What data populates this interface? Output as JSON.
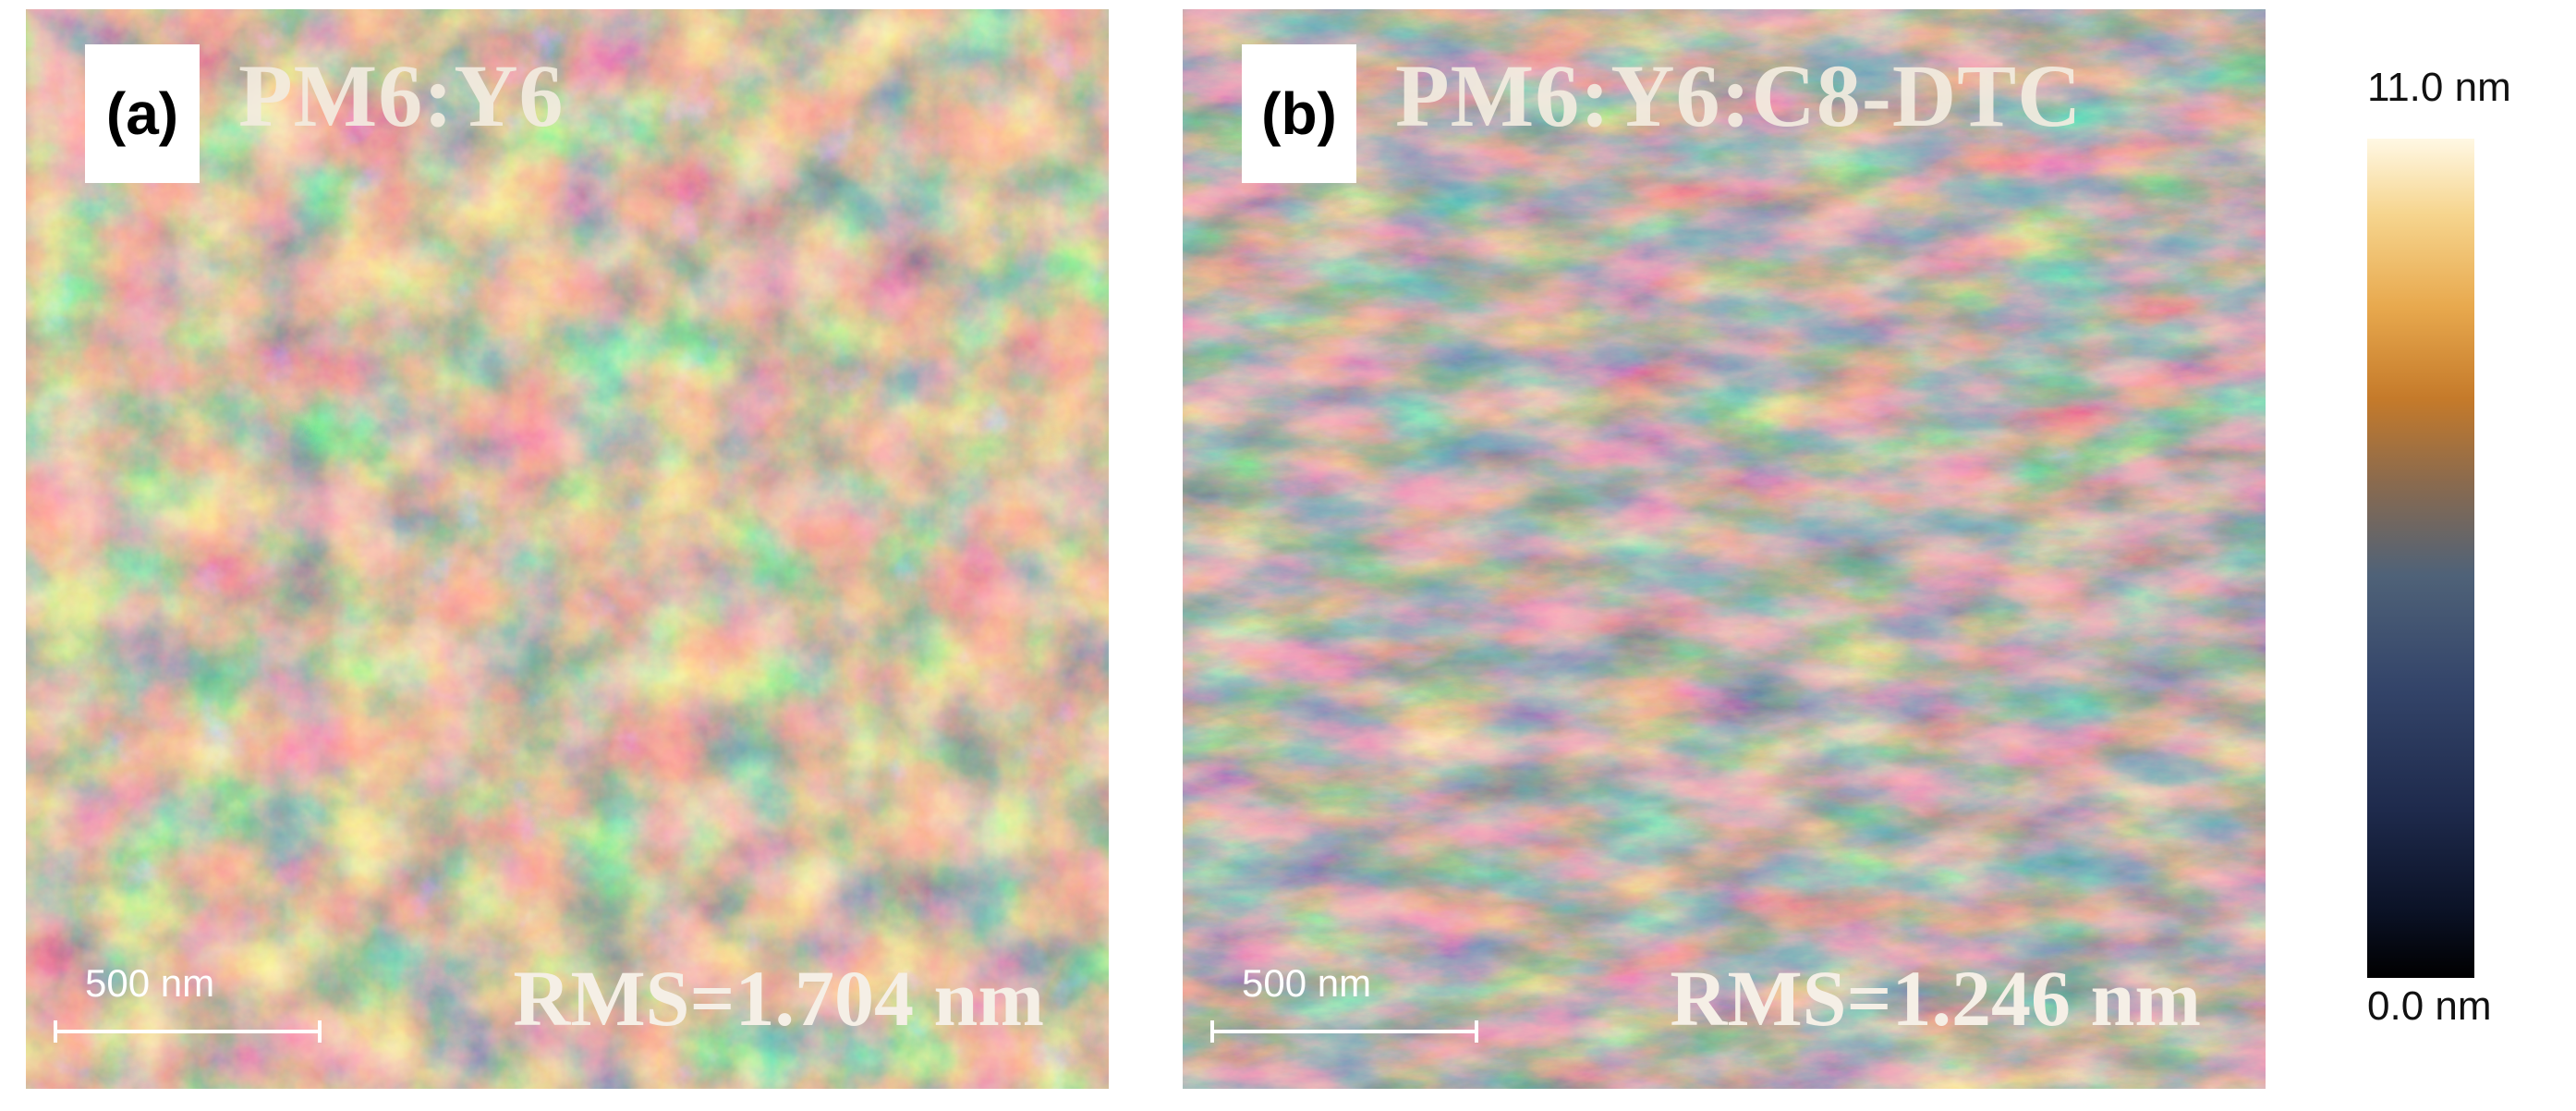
{
  "panels": [
    {
      "tag": "(a)",
      "title": "PM6:Y6",
      "rms": "RMS=1.704 nm",
      "scalebar": "500 nm"
    },
    {
      "tag": "(b)",
      "title": "PM6:Y6:C8-DTC",
      "rms": "RMS=1.246 nm",
      "scalebar": "500 nm"
    }
  ],
  "colorbar": {
    "max_label": "11.0 nm",
    "min_label": "0.0 nm",
    "colors": [
      "#fff8e4",
      "#e8a94e",
      "#c57a2a",
      "#4f6278",
      "#1e2a4c",
      "#000000"
    ]
  }
}
